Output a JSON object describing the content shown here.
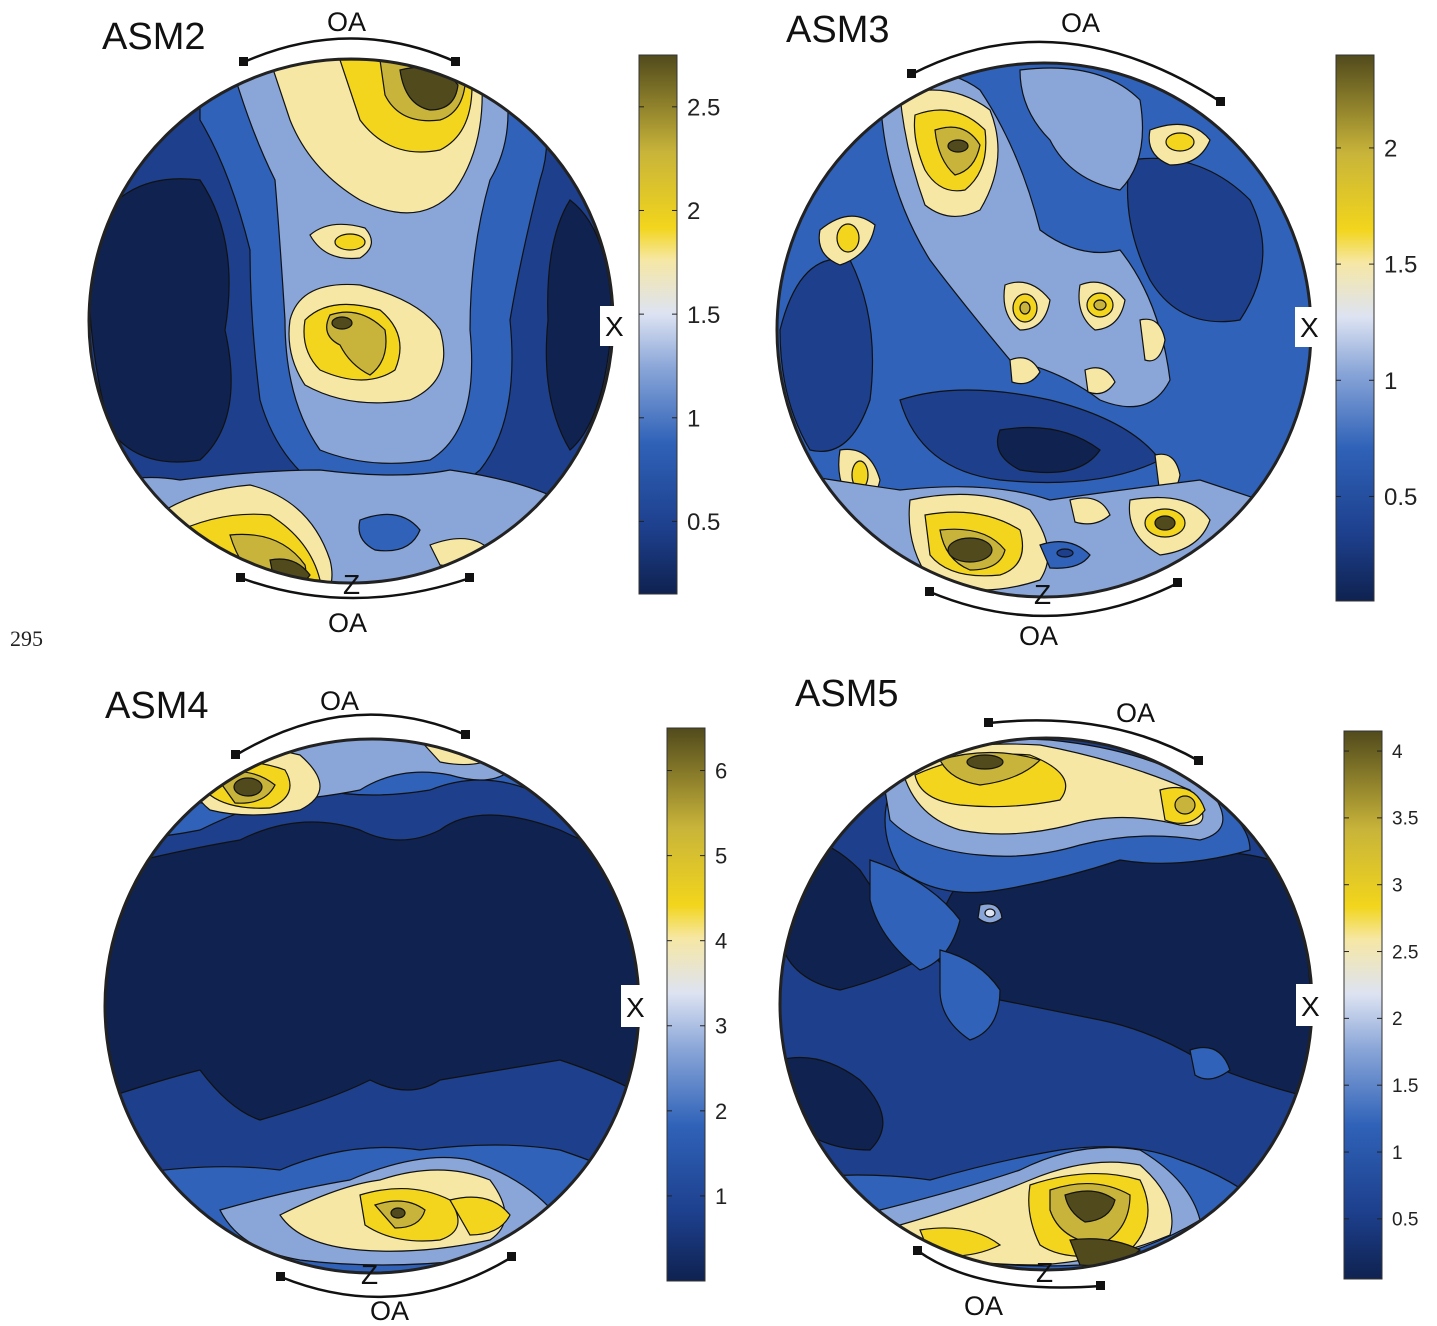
{
  "line_number": "295",
  "colormap": {
    "stops": [
      "#0f2250",
      "#1d3f8c",
      "#2f62b8",
      "#8aa6d8",
      "#dde3f2",
      "#f6e7a4",
      "#f2d51c",
      "#c8b43a",
      "#514a1c"
    ]
  },
  "panels": [
    {
      "title": "ASM2",
      "oa_top": "OA",
      "oa_bottom": "OA",
      "z_label": "Z",
      "x_label": "X",
      "colorbar_ticks": [
        "2.5",
        "2",
        "1.5",
        "1",
        "0.5"
      ],
      "colorbar_range": [
        0.15,
        2.75
      ],
      "tick_values": [
        2.5,
        2,
        1.5,
        1,
        0.5
      ]
    },
    {
      "title": "ASM3",
      "oa_top": "OA",
      "oa_bottom": "OA",
      "z_label": "Z",
      "x_label": "X",
      "colorbar_ticks": [
        "2",
        "1.5",
        "1",
        "0.5"
      ],
      "colorbar_range": [
        0.05,
        2.4
      ],
      "tick_values": [
        2,
        1.5,
        1,
        0.5
      ]
    },
    {
      "title": "ASM4",
      "oa_top": "OA",
      "oa_bottom": "OA",
      "z_label": "Z",
      "x_label": "X",
      "colorbar_ticks": [
        "6",
        "5",
        "4",
        "3",
        "2",
        "1"
      ],
      "colorbar_range": [
        0.0,
        6.5
      ],
      "tick_values": [
        6,
        5,
        4,
        3,
        2,
        1
      ]
    },
    {
      "title": "ASM5",
      "oa_top": "OA",
      "oa_bottom": "OA",
      "z_label": "Z",
      "x_label": "X",
      "colorbar_ticks": [
        "4",
        "3.5",
        "3",
        "2.5",
        "2",
        "1.5",
        "1",
        "0.5"
      ],
      "colorbar_range": [
        0.05,
        4.15
      ],
      "tick_values": [
        4,
        3.5,
        3,
        2.5,
        2,
        1.5,
        1,
        0.5
      ]
    }
  ]
}
